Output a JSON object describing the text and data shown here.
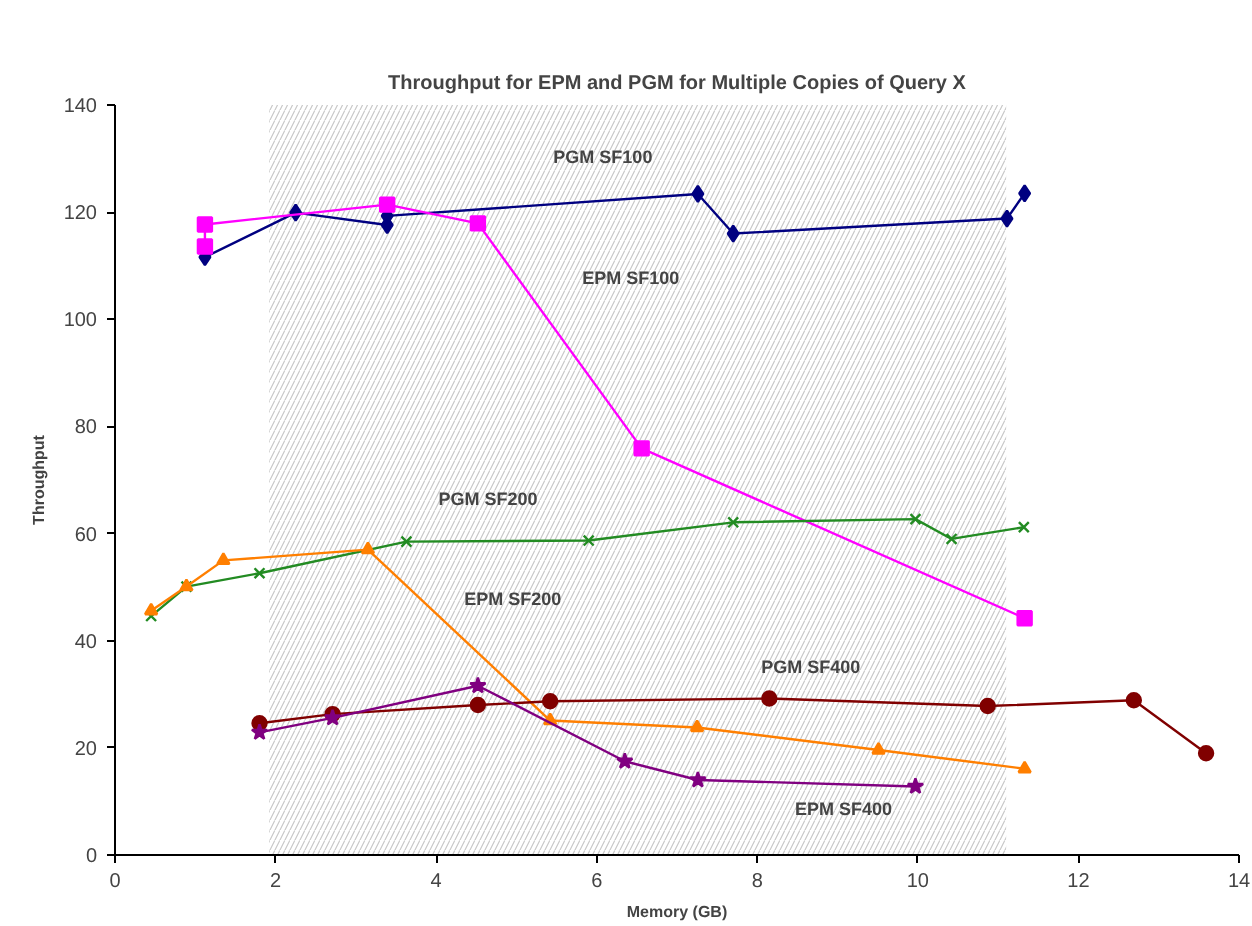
{
  "chart_data": {
    "type": "line",
    "title": "Throughput for EPM and PGM for Multiple Copies of Query X",
    "xlabel": "Memory (GB)",
    "ylabel": "Throughput",
    "xlim": [
      0,
      14
    ],
    "xticks": [
      0,
      2,
      4,
      6,
      8,
      10,
      12,
      14
    ],
    "ylim": [
      0,
      140
    ],
    "yticks": [
      0,
      20,
      40,
      60,
      80,
      100,
      120,
      140
    ],
    "grid": false,
    "legend": false,
    "line_style": "solid",
    "bands": [
      {
        "axis": "x",
        "from": 1.92,
        "to": 11.1,
        "color": "#c8c8c8"
      }
    ],
    "series": [
      {
        "name": "PGM SF100",
        "color": "#000080",
        "marker": "diamond",
        "x": [
          1.12,
          2.25,
          3.39,
          3.39,
          7.26,
          7.7,
          11.11,
          11.33
        ],
        "values": [
          111.6,
          119.9,
          117.6,
          119.3,
          123.4,
          116.0,
          118.8,
          123.5
        ]
      },
      {
        "name": "EPM SF100",
        "color": "#ff00ff",
        "marker": "square",
        "x": [
          1.12,
          1.12,
          3.39,
          4.52,
          6.56,
          11.33
        ],
        "values": [
          113.6,
          117.7,
          121.4,
          117.9,
          75.9,
          44.2
        ]
      },
      {
        "name": "PGM SF200",
        "color": "#228b22",
        "marker": "cross",
        "x": [
          0.45,
          0.89,
          1.8,
          3.63,
          5.9,
          7.7,
          9.97,
          10.42,
          11.32
        ],
        "values": [
          44.6,
          50.1,
          52.6,
          58.5,
          58.7,
          62.1,
          62.7,
          59.0,
          61.2
        ]
      },
      {
        "name": "EPM SF200",
        "color": "#ff7f00",
        "marker": "triangle",
        "x": [
          0.45,
          0.89,
          1.35,
          3.15,
          5.42,
          7.25,
          9.51,
          11.33
        ],
        "values": [
          45.6,
          50.1,
          55.0,
          57.0,
          25.1,
          23.8,
          19.6,
          16.1
        ]
      },
      {
        "name": "PGM SF400",
        "color": "#800000",
        "marker": "circle",
        "x": [
          1.8,
          2.71,
          4.52,
          5.42,
          8.15,
          10.87,
          12.69,
          13.59
        ],
        "values": [
          24.6,
          26.3,
          28.0,
          28.7,
          29.2,
          27.8,
          28.9,
          19.0
        ]
      },
      {
        "name": "EPM SF400",
        "color": "#800080",
        "marker": "star",
        "x": [
          1.8,
          2.71,
          4.52,
          6.35,
          7.26,
          9.97
        ],
        "values": [
          22.9,
          25.6,
          31.6,
          17.5,
          14.0,
          12.8
        ]
      }
    ]
  }
}
